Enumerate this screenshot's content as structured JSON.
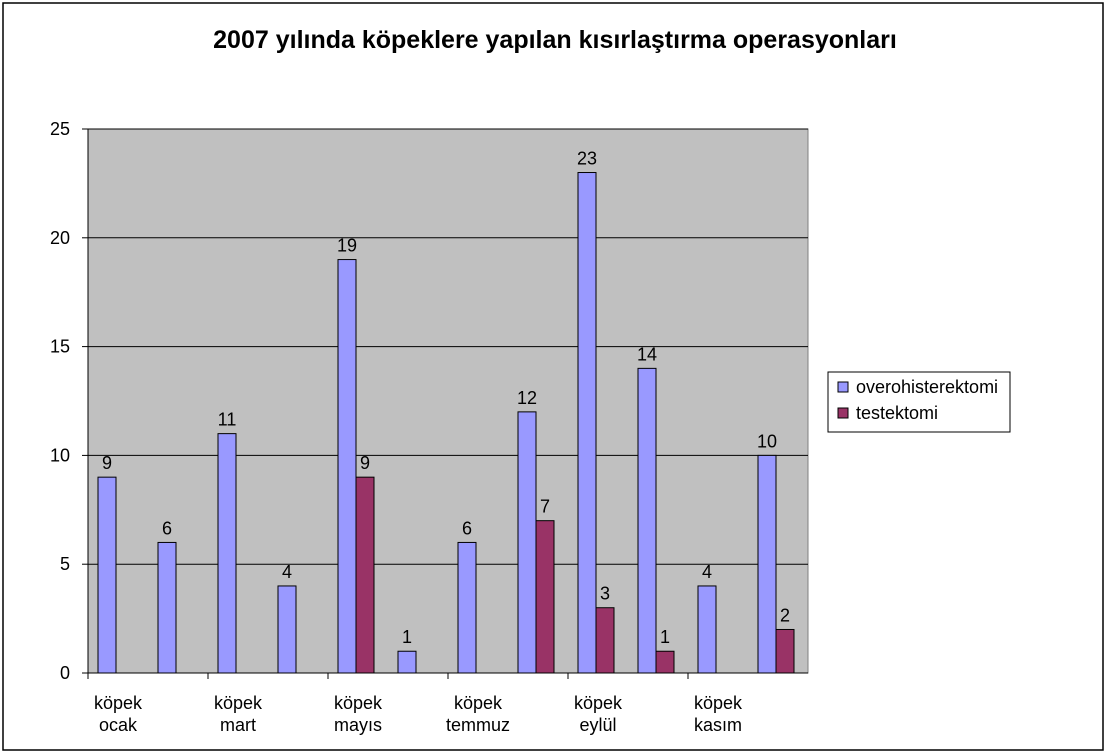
{
  "chart_data": {
    "type": "bar",
    "title": "2007 yılında köpeklere yapılan kısırlaştırma operasyonları",
    "categories": [
      "köpek ocak",
      null,
      "köpek mart",
      null,
      "köpek mayıs",
      null,
      "köpek temmuz",
      null,
      "köpek eylül",
      null,
      "köpek kasım",
      null
    ],
    "series": [
      {
        "name": "overohisterektomi",
        "color": "#9999ff",
        "values": [
          9,
          6,
          11,
          4,
          19,
          1,
          6,
          12,
          23,
          14,
          4,
          10
        ]
      },
      {
        "name": "testektomi",
        "color": "#993366",
        "values": [
          null,
          null,
          null,
          null,
          9,
          null,
          null,
          7,
          3,
          1,
          null,
          2
        ]
      }
    ],
    "ylim": [
      0,
      25
    ],
    "yticks": [
      0,
      5,
      10,
      15,
      20,
      25
    ],
    "grid": true,
    "legend": "right"
  }
}
